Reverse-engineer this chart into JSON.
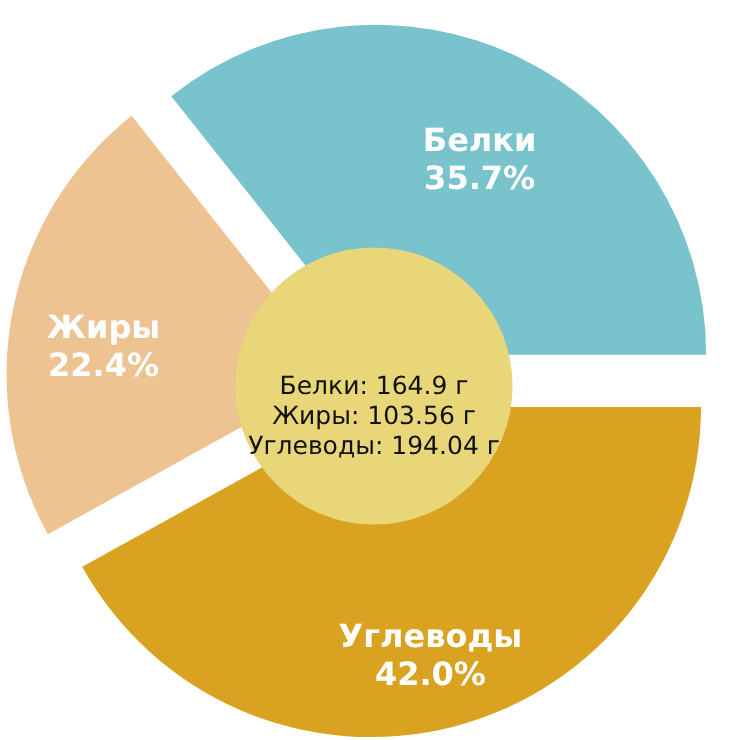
{
  "chart_data": {
    "type": "pie",
    "categories": [
      "Белки",
      "Жиры",
      "Углеводы"
    ],
    "values": [
      35.7,
      22.4,
      42.0
    ],
    "value_labels": [
      "35.7%",
      "22.4%",
      "42.0%"
    ],
    "colors": [
      "#78c3cc",
      "#edc391",
      "#d9a321"
    ],
    "annotations": [
      "Белки: 164.9 г",
      "Жиры: 103.56 г",
      "Углеводы: 194.04 г"
    ]
  }
}
